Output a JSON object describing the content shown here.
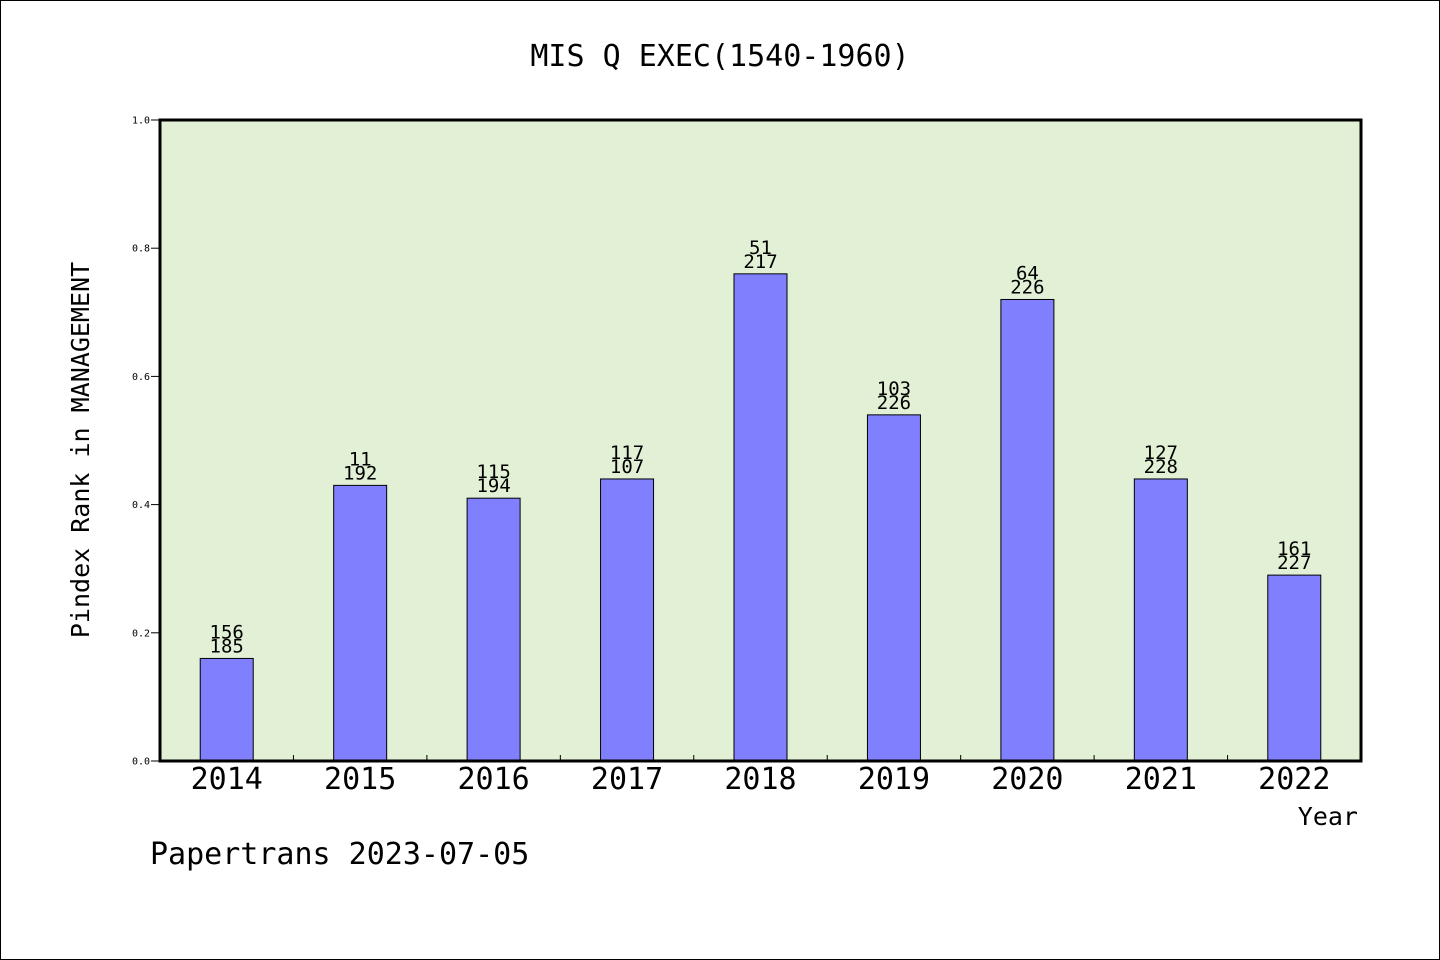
{
  "chart_data": {
    "type": "bar",
    "title": "MIS Q EXEC(1540-1960)",
    "xlabel": "Year",
    "ylabel": "Pindex Rank in MANAGEMENT",
    "ylim": [
      0,
      1.0
    ],
    "yticks": [
      "0.0",
      "0.2",
      "0.4",
      "0.6",
      "0.8",
      "1.0"
    ],
    "categories": [
      "2014",
      "2015",
      "2016",
      "2017",
      "2018",
      "2019",
      "2020",
      "2021",
      "2022"
    ],
    "values": [
      0.16,
      0.43,
      0.41,
      0.44,
      0.76,
      0.54,
      0.72,
      0.44,
      0.29
    ],
    "labels_top": [
      "156",
      "11",
      "115",
      "117",
      "51",
      "103",
      "64",
      "127",
      "161"
    ],
    "labels_bottom": [
      "185",
      "192",
      "194",
      "107",
      "217",
      "226",
      "226",
      "228",
      "227"
    ],
    "grid": false,
    "legend": "none",
    "colors": {
      "bar_fill": "#8080ff",
      "plot_background": "#e2f0d6",
      "axis": "#000000"
    }
  },
  "footer": {
    "text": "Papertrans 2023-07-05"
  }
}
